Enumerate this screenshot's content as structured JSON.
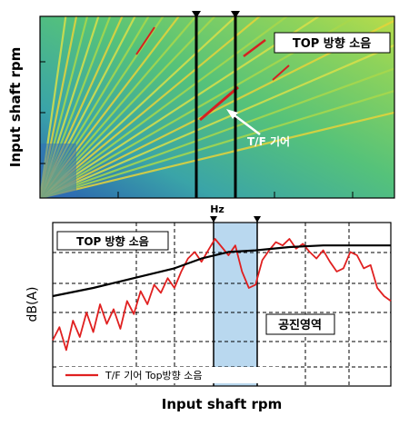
{
  "chart_data": [
    {
      "type": "heatmap",
      "ylabel": "Input shaft rpm",
      "xlabel": "Hz",
      "legend_box": "TOP 방향 소음",
      "annotation": "T/F 기어",
      "grid": false,
      "colors": {
        "low": "#2f6fb8",
        "mid": "#4fc08a",
        "high": "#e6d43a",
        "peak": "#d62020"
      }
    },
    {
      "type": "line",
      "xlabel": "Input shaft rpm",
      "ylabel": "dB(A)",
      "legend_box": "TOP 방향 소음",
      "region_label": "공진영역",
      "grid": true,
      "xlim": [
        0,
        100
      ],
      "ylim": [
        0,
        100
      ],
      "series": [
        {
          "name": "T/F 기어 Top방향 소음",
          "color": "#e02020",
          "x": [
            0,
            2,
            4,
            6,
            8,
            10,
            12,
            14,
            16,
            18,
            20,
            22,
            24,
            26,
            28,
            30,
            32,
            34,
            36,
            38,
            40,
            42,
            44,
            46,
            48,
            50,
            52,
            54,
            56,
            58,
            60,
            62,
            64,
            66,
            68,
            70,
            72,
            74,
            76,
            78,
            80,
            82,
            84,
            86,
            88,
            90,
            92,
            94,
            96,
            98,
            100
          ],
          "y": [
            28,
            36,
            22,
            40,
            30,
            45,
            33,
            50,
            38,
            47,
            35,
            52,
            44,
            58,
            50,
            62,
            57,
            66,
            60,
            70,
            78,
            82,
            76,
            83,
            90,
            85,
            80,
            86,
            70,
            60,
            62,
            77,
            83,
            88,
            86,
            90,
            84,
            87,
            82,
            78,
            83,
            76,
            70,
            72,
            82,
            80,
            72,
            74,
            60,
            55,
            52
          ]
        },
        {
          "name": "",
          "color": "#000000",
          "x": [
            0,
            12,
            24,
            36,
            44,
            52,
            60,
            70,
            80,
            90,
            100
          ],
          "y": [
            55,
            60,
            66,
            72,
            78,
            82,
            83,
            85,
            86,
            86,
            86
          ]
        }
      ],
      "vlines": [
        43,
        51
      ]
    }
  ]
}
